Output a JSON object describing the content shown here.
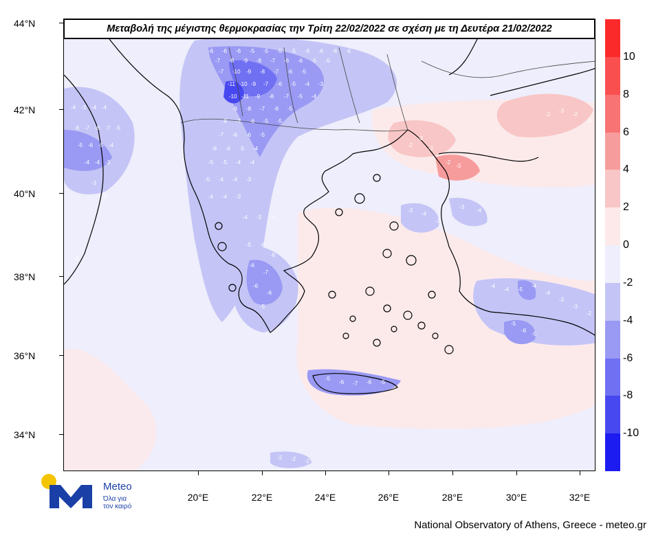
{
  "title": "Μεταβολή της μέγιστης θερμοκρασίας την Τρίτη 22/02/2022 σε σχέση με τη Δευτέρα 21/02/2022",
  "lat_labels": [
    "44°N",
    "42°N",
    "40°N",
    "38°N",
    "36°N",
    "34°N"
  ],
  "lon_labels": [
    "20°E",
    "22°E",
    "24°E",
    "26°E",
    "28°E",
    "30°E",
    "32°E"
  ],
  "colorbar": {
    "labels": [
      "10",
      "8",
      "6",
      "4",
      "2",
      "0",
      "-2",
      "-4",
      "-6",
      "-8",
      "-10"
    ],
    "colors": [
      "#fb2a2a",
      "#f94f4f",
      "#f87373",
      "#f79c9c",
      "#f8c6c6",
      "#fde9e9",
      "#eeeefc",
      "#c4c4f6",
      "#9a9af4",
      "#7070f3",
      "#4848f0",
      "#1c1cf0"
    ]
  },
  "logo": {
    "name": "Meteo",
    "tagline_1": "Όλα για",
    "tagline_2": "τον καιρό",
    "colors": {
      "blue": "#1a3fa6",
      "yellow": "#f5c400"
    }
  },
  "footer": "National Observatory of Athens, Greece - meteo.gr",
  "field_values": [
    "-11",
    "-10",
    "-9",
    "-8",
    "-7",
    "-6",
    "-5",
    "-4",
    "-3",
    "-2",
    "2",
    "3"
  ]
}
